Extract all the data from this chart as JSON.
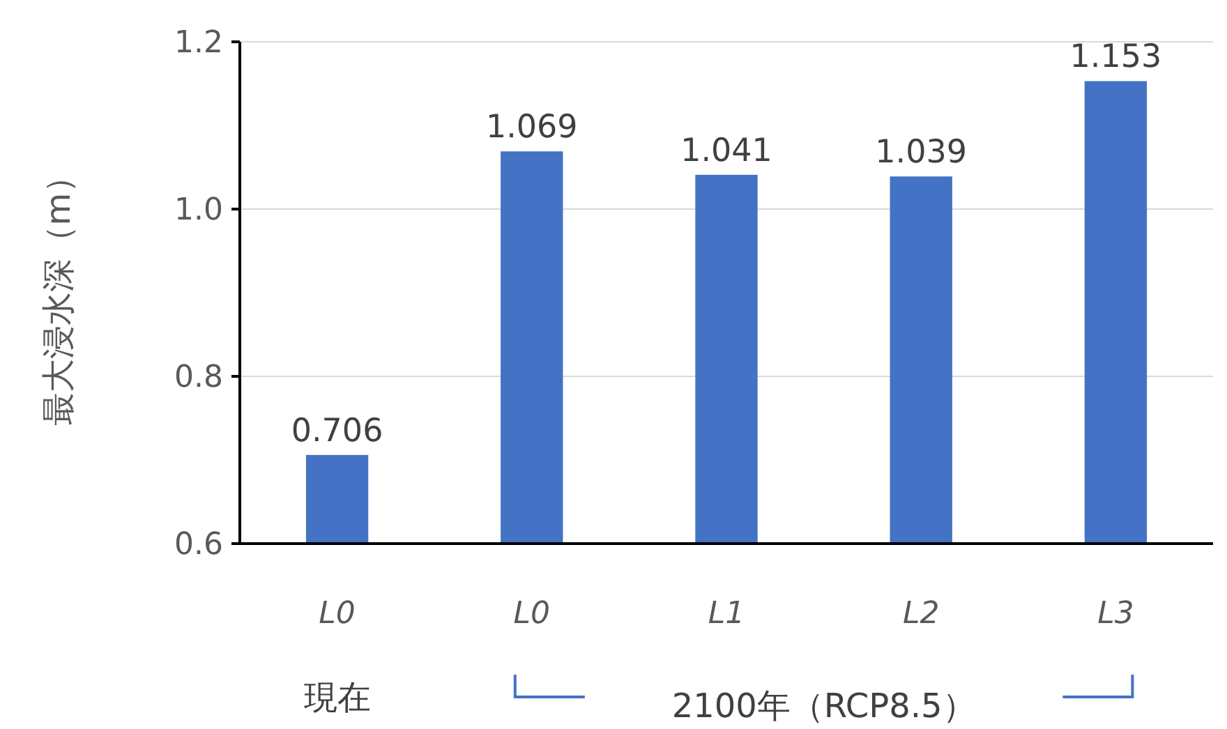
{
  "chart_data": {
    "type": "bar",
    "ylabel": "最大浸水深（m）",
    "categories": [
      "L0",
      "L0",
      "L1",
      "L2",
      "L3"
    ],
    "values": [
      0.706,
      1.069,
      1.041,
      1.039,
      1.153
    ],
    "color": "#4472c4",
    "ylim": [
      0.6,
      1.2
    ],
    "yticks": [
      {
        "value": 0.6,
        "label": "0.6"
      },
      {
        "value": 0.8,
        "label": "0.8"
      },
      {
        "value": 1.0,
        "label": "1.0"
      },
      {
        "value": 1.2,
        "label": "1.2"
      }
    ],
    "grid": "y",
    "data_labels": true,
    "annotations": [
      "現在",
      "2100年（RCP8.5）"
    ]
  }
}
